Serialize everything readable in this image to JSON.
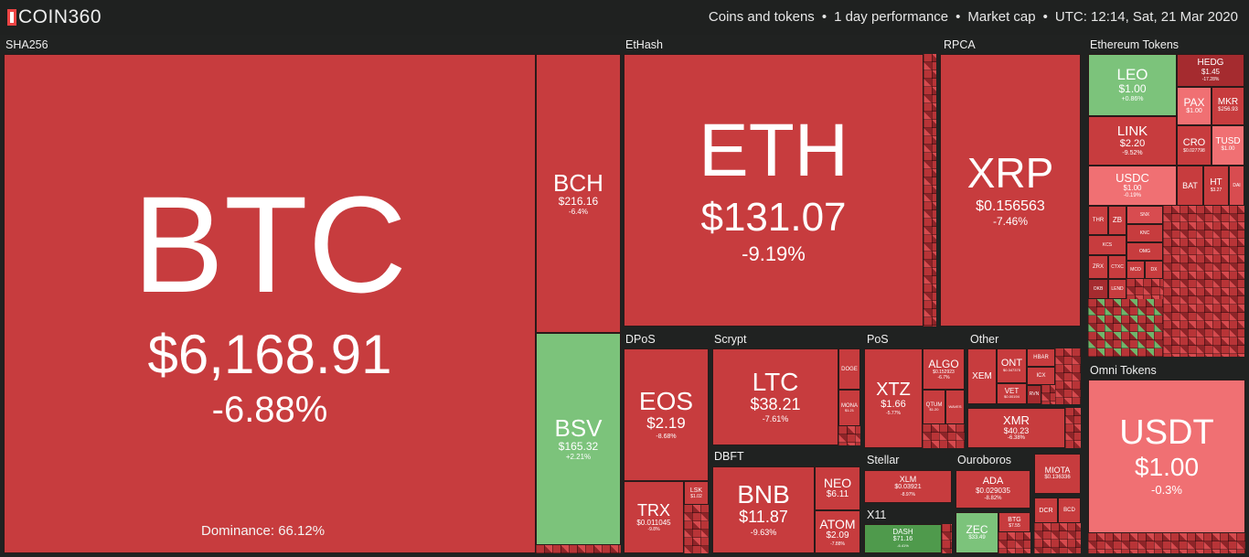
{
  "brand": {
    "logo_text": "COIN360"
  },
  "filters": [
    "Coins and tokens",
    "1 day performance",
    "Market cap",
    "UTC: 12:14, Sat, 21 Mar 2020"
  ],
  "groups": {
    "sha256": "SHA256",
    "ethash": "EtHash",
    "rpca": "RPCA",
    "ethereum_tokens": "Ethereum Tokens",
    "dpos": "DPoS",
    "scrypt": "Scrypt",
    "pos": "PoS",
    "other": "Other",
    "dbft": "DBFT",
    "stellar": "Stellar",
    "ouroboros": "Ouroboros",
    "x11": "X11",
    "omni_tokens": "Omni Tokens"
  },
  "dominance": "Dominance: 66.12%",
  "coins": {
    "btc": {
      "sym": "BTC",
      "price": "$6,168.91",
      "change": "-6.88%"
    },
    "bch": {
      "sym": "BCH",
      "price": "$216.16",
      "change": "-6.4%"
    },
    "bsv": {
      "sym": "BSV",
      "price": "$165.32",
      "change": "+2.21%"
    },
    "eth": {
      "sym": "ETH",
      "price": "$131.07",
      "change": "-9.19%"
    },
    "xrp": {
      "sym": "XRP",
      "price": "$0.156563",
      "change": "-7.46%"
    },
    "eos": {
      "sym": "EOS",
      "price": "$2.19",
      "change": "-8.68%"
    },
    "trx": {
      "sym": "TRX",
      "price": "$0.011045",
      "change": "-9.8%"
    },
    "lsk": {
      "sym": "LSK",
      "price": "$1.02",
      "change": ""
    },
    "ltc": {
      "sym": "LTC",
      "price": "$38.21",
      "change": "-7.61%"
    },
    "doge": {
      "sym": "DOGE",
      "price": "",
      "change": ""
    },
    "mona": {
      "sym": "MONA",
      "price": "$1.21",
      "change": ""
    },
    "bnb": {
      "sym": "BNB",
      "price": "$11.87",
      "change": "-9.63%"
    },
    "neo": {
      "sym": "NEO",
      "price": "$6.11",
      "change": ""
    },
    "atom": {
      "sym": "ATOM",
      "price": "$2.09",
      "change": "-7.88%"
    },
    "xtz": {
      "sym": "XTZ",
      "price": "$1.66",
      "change": "-5.77%"
    },
    "algo": {
      "sym": "ALGO",
      "price": "$0.152923",
      "change": "-6.7%"
    },
    "qtum": {
      "sym": "QTUM",
      "price": "$1.20",
      "change": ""
    },
    "waves": {
      "sym": "WAVES",
      "price": "",
      "change": ""
    },
    "xem": {
      "sym": "XEM",
      "price": "",
      "change": ""
    },
    "ont": {
      "sym": "ONT",
      "price": "$0.347375",
      "change": ""
    },
    "vet": {
      "sym": "VET",
      "price": "$0.00194",
      "change": ""
    },
    "hbar": {
      "sym": "HBAR",
      "price": "",
      "change": ""
    },
    "icx": {
      "sym": "ICX",
      "price": "",
      "change": ""
    },
    "rvn": {
      "sym": "RVN",
      "price": "",
      "change": ""
    },
    "xmr": {
      "sym": "XMR",
      "price": "$40.23",
      "change": "-6.38%"
    },
    "xlm": {
      "sym": "XLM",
      "price": "$0.03921",
      "change": "-8.97%"
    },
    "ada": {
      "sym": "ADA",
      "price": "$0.029035",
      "change": "-8.82%"
    },
    "miota": {
      "sym": "MIOTA",
      "price": "$0.136336",
      "change": ""
    },
    "dash": {
      "sym": "DASH",
      "price": "$71.16",
      "change": "-6.41%"
    },
    "zec": {
      "sym": "ZEC",
      "price": "$33.49",
      "change": ""
    },
    "btg": {
      "sym": "BTG",
      "price": "$7.55",
      "change": ""
    },
    "dcr": {
      "sym": "DCR",
      "price": "",
      "change": ""
    },
    "bcd": {
      "sym": "BCD",
      "price": "",
      "change": ""
    },
    "leo": {
      "sym": "LEO",
      "price": "$1.00",
      "change": "+0.86%"
    },
    "hedg": {
      "sym": "HEDG",
      "price": "$1.45",
      "change": "-17.28%"
    },
    "pax": {
      "sym": "PAX",
      "price": "$1.00",
      "change": ""
    },
    "mkr": {
      "sym": "MKR",
      "price": "$256.93",
      "change": ""
    },
    "link": {
      "sym": "LINK",
      "price": "$2.20",
      "change": "-9.52%"
    },
    "cro": {
      "sym": "CRO",
      "price": "$0.027798",
      "change": ""
    },
    "tusd": {
      "sym": "TUSD",
      "price": "$1.00",
      "change": ""
    },
    "usdc": {
      "sym": "USDC",
      "price": "$1.00",
      "change": "-0.19%"
    },
    "bat": {
      "sym": "BAT",
      "price": "",
      "change": ""
    },
    "ht": {
      "sym": "HT",
      "price": "$3.27",
      "change": ""
    },
    "dai": {
      "sym": "DAI",
      "price": "",
      "change": ""
    },
    "usdt": {
      "sym": "USDT",
      "price": "$1.00",
      "change": "-0.3%"
    }
  },
  "small_tokens": [
    "THR",
    "ZB",
    "SNX",
    "KNC",
    "KCS",
    "OMG",
    "ZRX",
    "CTXC",
    "MCO",
    "DX",
    "OKB",
    "LEND"
  ]
}
